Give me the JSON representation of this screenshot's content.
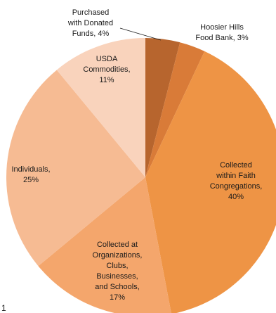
{
  "chart_data": {
    "type": "pie",
    "title": "",
    "slices": [
      {
        "label": [
          "Purchased",
          "with Donated",
          "Funds, 4%"
        ],
        "value": 4,
        "color": "#b7652e"
      },
      {
        "label": [
          "Hoosier Hills",
          "Food Bank, 3%"
        ],
        "value": 3,
        "color": "#d97b38"
      },
      {
        "label": [
          "Collected",
          "within Faith",
          "Congregations,",
          "40%"
        ],
        "value": 40,
        "color": "#ee9445"
      },
      {
        "label": [
          "Collected at",
          "Organizations,",
          "Clubs,",
          "Businesses,",
          "and Schools,",
          "17%"
        ],
        "value": 17,
        "color": "#f4a66c"
      },
      {
        "label": [
          "Individuals,",
          "25%"
        ],
        "value": 25,
        "color": "#f6bb93"
      },
      {
        "label": [
          "USDA",
          "Commodities,",
          "11%"
        ],
        "value": 11,
        "color": "#f9d3bc"
      }
    ],
    "footnote": "1"
  }
}
